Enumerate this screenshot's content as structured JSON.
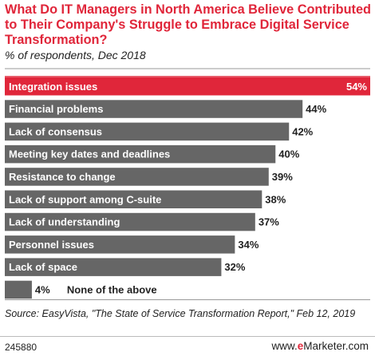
{
  "header": {
    "title": "What Do IT Managers in North America Believe Contributed to Their Company's Struggle to Embrace Digital Service Transformation?",
    "subtitle": "% of respondents, Dec 2018"
  },
  "chart_data": {
    "type": "bar",
    "orientation": "horizontal",
    "categories": [
      "Integration issues",
      "Financial problems",
      "Lack of consensus",
      "Meeting key dates and deadlines",
      "Resistance to change",
      "Lack of support among C-suite",
      "Lack of understanding",
      "Personnel issues",
      "Lack of space",
      "None of the above"
    ],
    "values": [
      54,
      44,
      42,
      40,
      39,
      38,
      37,
      34,
      32,
      4
    ],
    "value_labels": [
      "54%",
      "44%",
      "42%",
      "40%",
      "39%",
      "38%",
      "37%",
      "34%",
      "32%",
      "4%"
    ],
    "xlim": [
      0,
      54
    ],
    "grid": false,
    "legend": "none",
    "bar_color": "#666666",
    "top_bar_color": "#e0263a"
  },
  "footer": {
    "source": "Source: EasyVista, \"The State of Service Transformation Report,\" Feb 12, 2019",
    "chart_id": "245880",
    "brand_prefix": "www.",
    "brand_e": "e",
    "brand_suffix": "Marketer.com"
  }
}
